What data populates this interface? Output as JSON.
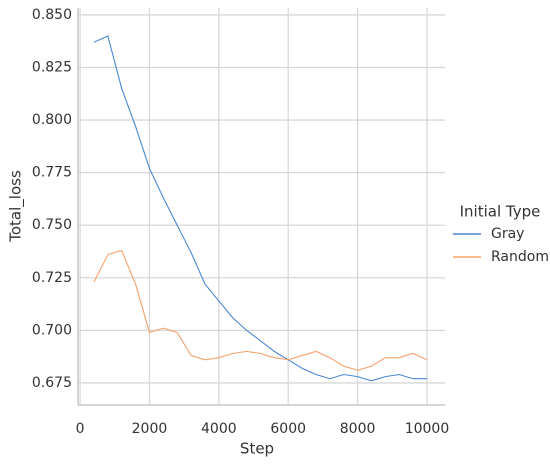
{
  "chart_data": {
    "type": "line",
    "x_label": "Step",
    "y_label": "Total_loss",
    "legend_title": "Initial Type",
    "legend_position": "right",
    "grid": true,
    "x": [
      400,
      800,
      1200,
      1600,
      2000,
      2400,
      2800,
      3200,
      3600,
      4000,
      4400,
      4800,
      5200,
      5600,
      6000,
      6400,
      6800,
      7200,
      7600,
      8000,
      8400,
      8800,
      9200,
      9600,
      10000
    ],
    "series": [
      {
        "name": "Gray",
        "color": "#4a86d4",
        "values": [
          0.837,
          0.84,
          0.815,
          0.797,
          0.777,
          0.763,
          0.75,
          0.737,
          0.722,
          0.714,
          0.706,
          0.7,
          0.695,
          0.69,
          0.686,
          0.682,
          0.679,
          0.677,
          0.679,
          0.678,
          0.676,
          0.678,
          0.679,
          0.677,
          0.677
        ]
      },
      {
        "name": "Random",
        "color": "#f4a26b",
        "values": [
          0.723,
          0.736,
          0.738,
          0.722,
          0.699,
          0.701,
          0.699,
          0.688,
          0.686,
          0.687,
          0.689,
          0.69,
          0.689,
          0.687,
          0.686,
          0.688,
          0.69,
          0.687,
          0.683,
          0.681,
          0.683,
          0.687,
          0.687,
          0.689,
          0.686
        ]
      }
    ],
    "xlim": [
      -60,
      10520
    ],
    "xticks": [
      0,
      2000,
      4000,
      6000,
      8000,
      10000
    ],
    "ylim": [
      0.6645,
      0.8533
    ],
    "yticks": [
      0.675,
      {
        "value": 0.7,
        "label": "0.700"
      },
      0.725,
      {
        "value": 0.75,
        "label": "0.750"
      },
      0.775,
      {
        "value": 0.8,
        "label": "0.800"
      },
      0.825,
      {
        "value": 0.85,
        "label": "0.850"
      }
    ]
  }
}
